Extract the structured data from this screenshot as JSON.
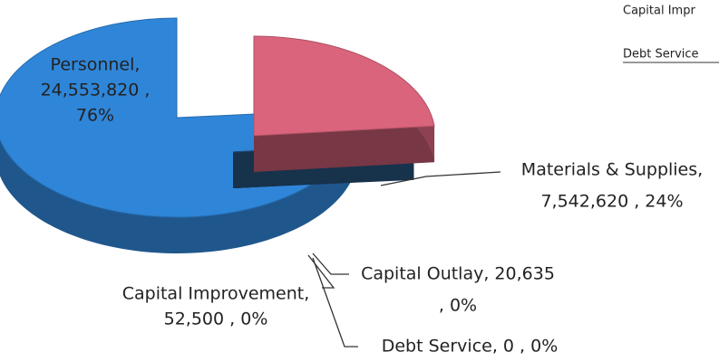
{
  "chart_data": {
    "type": "pie3d",
    "categories": [
      "Personnel",
      "Materials & Supplies",
      "Capital Improvement",
      "Capital Outlay",
      "Debt Service"
    ],
    "values": [
      24553820,
      7542620,
      52500,
      20635,
      0
    ],
    "percents": [
      76,
      24,
      0,
      0,
      0
    ],
    "data_labels": [
      [
        "Personnel,",
        "24,553,820 ,",
        "76%"
      ],
      [
        "Materials & Supplies,",
        "7,542,620 , 24%"
      ],
      [
        "Capital Improvement,",
        "52,500 , 0%"
      ],
      [
        "Capital Outlay, 20,635",
        ", 0%"
      ],
      [
        "Debt Service, 0 , 0%"
      ]
    ],
    "colors": [
      "#2f86d8",
      "#d9647c",
      "#2a5f96",
      "#2a5a88",
      "#3d3d5c"
    ],
    "cropped_legend": [
      "Capital Impr",
      "Debt Service"
    ]
  }
}
